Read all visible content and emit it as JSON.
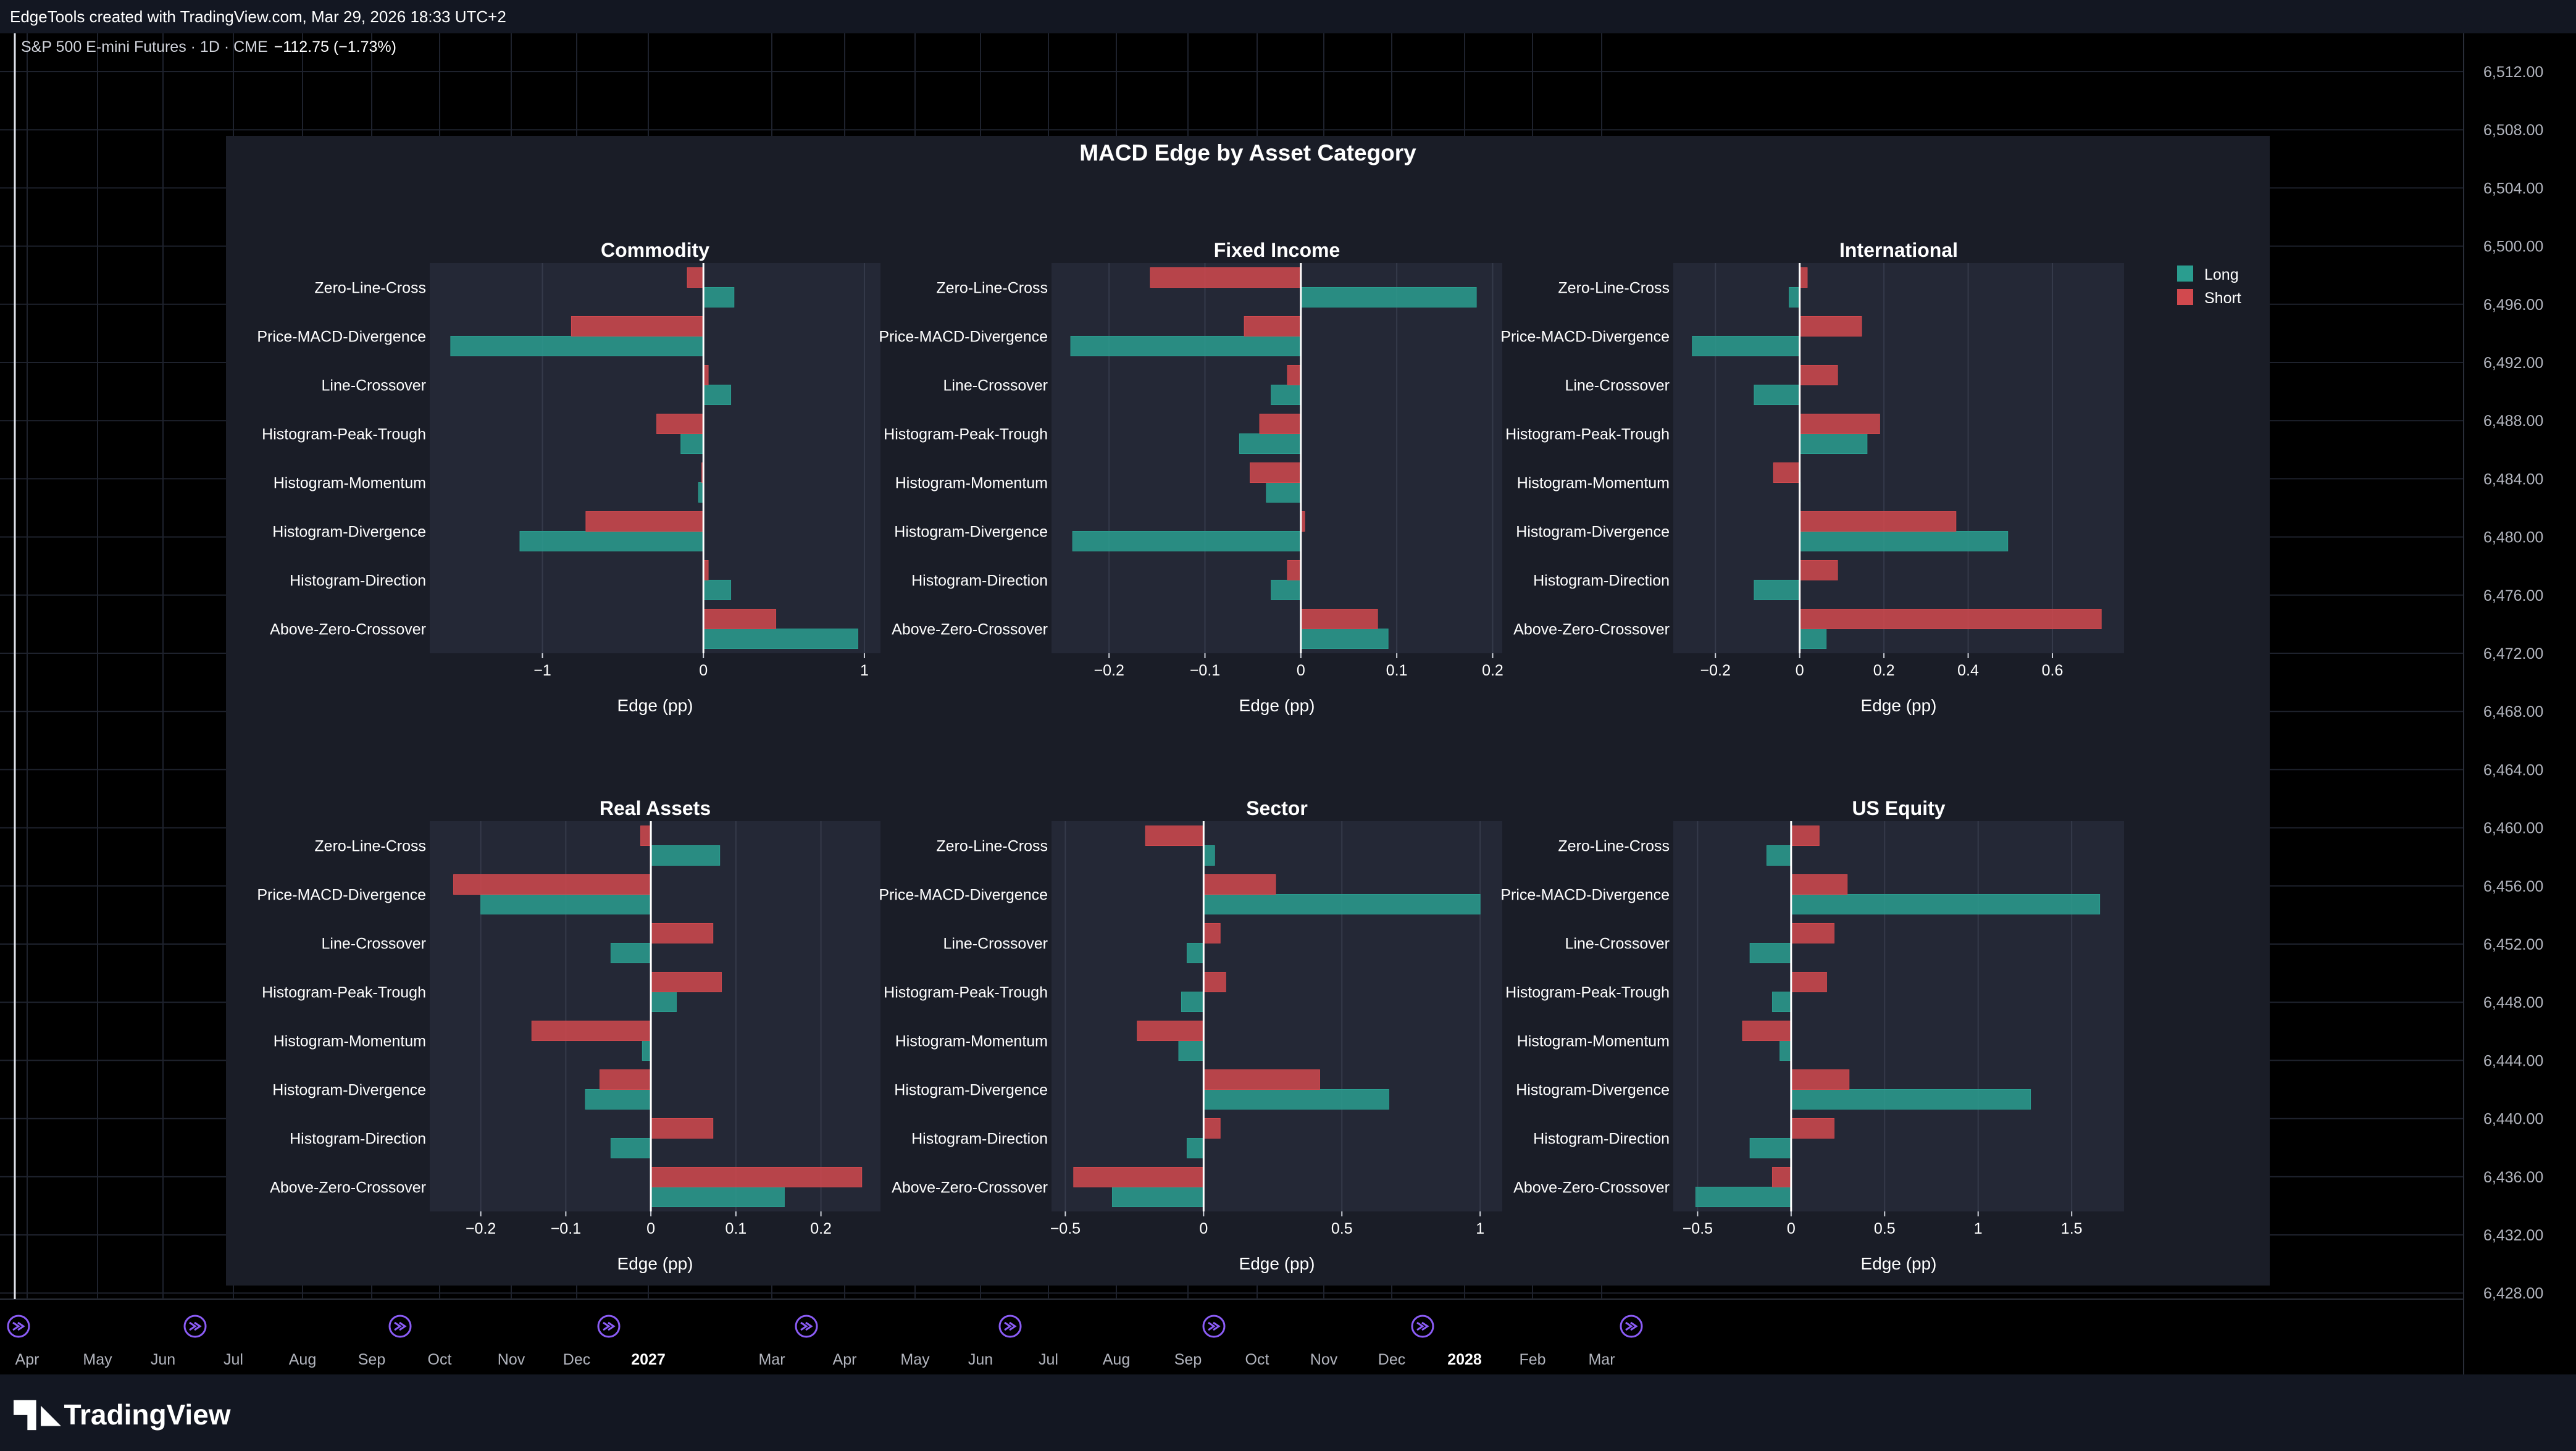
{
  "header": {
    "caption": "EdgeTools created with TradingView.com, Mar 29, 2026 18:33 UTC+2"
  },
  "symbol": {
    "name": "S&P 500 E-mini Futures · 1D · CME",
    "change": "−112.75 (−1.73%)"
  },
  "price_scale": {
    "labels": [
      "6,512.00",
      "6,508.00",
      "6,504.00",
      "6,500.00",
      "6,496.00",
      "6,492.00",
      "6,488.00",
      "6,484.00",
      "6,480.00",
      "6,476.00",
      "6,472.00",
      "6,468.00",
      "6,464.00",
      "6,460.00",
      "6,456.00",
      "6,452.00",
      "6,448.00",
      "6,444.00",
      "6,440.00",
      "6,436.00",
      "6,432.00",
      "6,428.00"
    ]
  },
  "time_axis": {
    "labels": [
      "Apr",
      "May",
      "Jun",
      "Jul",
      "Aug",
      "Sep",
      "Oct",
      "Nov",
      "Dec",
      "2027",
      "Mar",
      "Apr",
      "May",
      "Jun",
      "Jul",
      "Aug",
      "Sep",
      "Oct",
      "Nov",
      "Dec",
      "2028",
      "Feb",
      "Mar"
    ],
    "bold": [
      "2027",
      "2028"
    ],
    "marker_icon": "arrow-circle-icon"
  },
  "branding": {
    "name": "TradingView",
    "icon": "tradingview-logo-icon"
  },
  "colors": {
    "long": "#2a9d8f",
    "short": "#d1494e",
    "panel_bg": "#1a1d27",
    "plot_bg": "#242836",
    "marker": "#8b5cf6"
  },
  "chart_data": {
    "type": "bar",
    "orientation": "horizontal",
    "title": "MACD Edge by Asset Category",
    "legend": {
      "position": "top-right",
      "entries": [
        "Long",
        "Short"
      ]
    },
    "categories": [
      "Zero-Line-Cross",
      "Price-MACD-Divergence",
      "Line-Crossover",
      "Histogram-Peak-Trough",
      "Histogram-Momentum",
      "Histogram-Divergence",
      "Histogram-Direction",
      "Above-Zero-Crossover"
    ],
    "subplots": [
      {
        "title": "Commodity",
        "xlabel": "Edge (pp)",
        "xlim": [
          -1.7,
          1.1
        ],
        "ticks": [
          -1,
          0,
          1
        ],
        "tick_labels": [
          "−1",
          "0",
          "1"
        ],
        "series": [
          {
            "name": "Long",
            "values": [
              0.19,
              -1.57,
              0.17,
              -0.14,
              -0.03,
              -1.14,
              0.17,
              0.96
            ]
          },
          {
            "name": "Short",
            "values": [
              -0.1,
              -0.82,
              0.03,
              -0.29,
              -0.01,
              -0.73,
              0.03,
              0.45
            ]
          }
        ]
      },
      {
        "title": "Fixed Income",
        "xlabel": "Edge (pp)",
        "xlim": [
          -0.26,
          0.21
        ],
        "ticks": [
          -0.2,
          -0.1,
          0,
          0.1,
          0.2
        ],
        "tick_labels": [
          "−0.2",
          "−0.1",
          "0",
          "0.1",
          "0.2"
        ],
        "series": [
          {
            "name": "Long",
            "values": [
              0.183,
              -0.24,
              -0.031,
              -0.064,
              -0.036,
              -0.238,
              -0.031,
              0.091
            ]
          },
          {
            "name": "Short",
            "values": [
              -0.157,
              -0.059,
              -0.014,
              -0.043,
              -0.053,
              0.004,
              -0.014,
              0.08
            ]
          }
        ]
      },
      {
        "title": "International",
        "xlabel": "Edge (pp)",
        "xlim": [
          -0.3,
          0.77
        ],
        "ticks": [
          -0.2,
          0,
          0.2,
          0.4,
          0.6
        ],
        "tick_labels": [
          "−0.2",
          "0",
          "0.2",
          "0.4",
          "0.6"
        ],
        "series": [
          {
            "name": "Long",
            "values": [
              -0.025,
              -0.255,
              -0.108,
              0.16,
              0.0,
              0.494,
              -0.108,
              0.063
            ]
          },
          {
            "name": "Short",
            "values": [
              0.018,
              0.147,
              0.09,
              0.19,
              -0.062,
              0.371,
              0.09,
              0.716
            ]
          }
        ]
      },
      {
        "title": "Real Assets",
        "xlabel": "Edge (pp)",
        "xlim": [
          -0.26,
          0.27
        ],
        "ticks": [
          -0.2,
          -0.1,
          0,
          0.1,
          0.2
        ],
        "tick_labels": [
          "−0.2",
          "−0.1",
          "0",
          "0.1",
          "0.2"
        ],
        "series": [
          {
            "name": "Long",
            "values": [
              0.081,
              -0.2,
              -0.047,
              0.03,
              -0.01,
              -0.077,
              -0.047,
              0.157
            ]
          },
          {
            "name": "Short",
            "values": [
              -0.012,
              -0.232,
              0.073,
              0.083,
              -0.14,
              -0.06,
              0.073,
              0.248
            ]
          }
        ]
      },
      {
        "title": "Sector",
        "xlabel": "Edge (pp)",
        "xlim": [
          -0.55,
          1.08
        ],
        "ticks": [
          -0.5,
          0,
          0.5,
          1
        ],
        "tick_labels": [
          "−0.5",
          "0",
          "0.5",
          "1"
        ],
        "series": [
          {
            "name": "Long",
            "values": [
              0.04,
              1.0,
              -0.06,
              -0.08,
              -0.09,
              0.67,
              -0.06,
              -0.33
            ]
          },
          {
            "name": "Short",
            "values": [
              -0.21,
              0.26,
              0.06,
              0.08,
              -0.24,
              0.42,
              0.06,
              -0.47
            ]
          }
        ]
      },
      {
        "title": "US Equity",
        "xlabel": "Edge (pp)",
        "xlim": [
          -0.63,
          1.78
        ],
        "ticks": [
          -0.5,
          0,
          0.5,
          1,
          1.5
        ],
        "tick_labels": [
          "−0.5",
          "0",
          "0.5",
          "1",
          "1.5"
        ],
        "series": [
          {
            "name": "Long",
            "values": [
              -0.13,
              1.65,
              -0.22,
              -0.1,
              -0.06,
              1.28,
              -0.22,
              -0.51
            ]
          },
          {
            "name": "Short",
            "values": [
              0.15,
              0.3,
              0.23,
              0.19,
              -0.26,
              0.31,
              0.23,
              -0.1
            ]
          }
        ]
      }
    ]
  }
}
